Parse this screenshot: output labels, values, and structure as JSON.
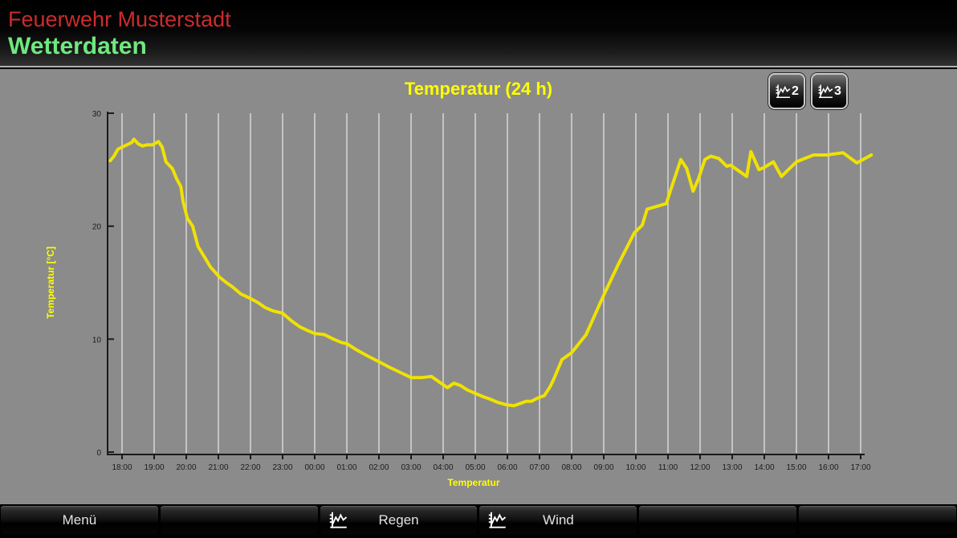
{
  "header": {
    "app_title": "Feuerwehr Musterstadt",
    "page_title": "Wetterdaten"
  },
  "view_buttons": [
    {
      "label": "2",
      "icon": "line-chart-icon"
    },
    {
      "label": "3",
      "icon": "line-chart-icon"
    }
  ],
  "chart_data": {
    "type": "line",
    "title": "Temperatur (24 h)",
    "xlabel": "Temperatur",
    "ylabel": "Temperatur [°C]",
    "ylim": [
      0,
      30
    ],
    "y_ticks": [
      30,
      20,
      10,
      0
    ],
    "x_ticks": [
      "18:00",
      "19:00",
      "20:00",
      "21:00",
      "22:00",
      "23:00",
      "00:00",
      "01:00",
      "02:00",
      "03:00",
      "04:00",
      "05:00",
      "06:00",
      "07:00",
      "08:00",
      "09:00",
      "10:00",
      "11:00",
      "12:00",
      "13:00",
      "14:00",
      "15:00",
      "16:00",
      "17:00"
    ],
    "x_unit": "minutes after 18:00",
    "grid": "vertical hourly gridlines",
    "legend_position": "none",
    "line_color": "#f0e202",
    "series": [
      {
        "name": "Temperatur",
        "points": [
          [
            -22,
            25.8
          ],
          [
            -15,
            26.2
          ],
          [
            -8,
            26.8
          ],
          [
            0,
            27.0
          ],
          [
            9,
            27.2
          ],
          [
            18,
            27.4
          ],
          [
            22,
            27.7
          ],
          [
            30,
            27.3
          ],
          [
            38,
            27.1
          ],
          [
            46,
            27.2
          ],
          [
            57,
            27.2
          ],
          [
            68,
            27.5
          ],
          [
            75,
            27.0
          ],
          [
            82,
            25.7
          ],
          [
            90,
            25.3
          ],
          [
            94,
            25.1
          ],
          [
            102,
            24.2
          ],
          [
            110,
            23.5
          ],
          [
            114,
            22.2
          ],
          [
            122,
            20.7
          ],
          [
            132,
            20.0
          ],
          [
            142,
            18.2
          ],
          [
            155,
            17.2
          ],
          [
            165,
            16.4
          ],
          [
            182,
            15.5
          ],
          [
            195,
            15.0
          ],
          [
            207,
            14.6
          ],
          [
            222,
            14.0
          ],
          [
            240,
            13.6
          ],
          [
            255,
            13.2
          ],
          [
            267,
            12.8
          ],
          [
            282,
            12.5
          ],
          [
            300,
            12.3
          ],
          [
            317,
            11.6
          ],
          [
            332,
            11.1
          ],
          [
            345,
            10.8
          ],
          [
            360,
            10.5
          ],
          [
            378,
            10.4
          ],
          [
            395,
            10.0
          ],
          [
            410,
            9.7
          ],
          [
            420,
            9.6
          ],
          [
            440,
            9.0
          ],
          [
            459,
            8.5
          ],
          [
            480,
            8.0
          ],
          [
            500,
            7.5
          ],
          [
            522,
            7.0
          ],
          [
            540,
            6.6
          ],
          [
            560,
            6.6
          ],
          [
            578,
            6.7
          ],
          [
            593,
            6.2
          ],
          [
            608,
            5.7
          ],
          [
            620,
            6.1
          ],
          [
            632,
            5.9
          ],
          [
            645,
            5.5
          ],
          [
            660,
            5.2
          ],
          [
            675,
            4.9
          ],
          [
            687,
            4.7
          ],
          [
            702,
            4.4
          ],
          [
            717,
            4.2
          ],
          [
            732,
            4.1
          ],
          [
            744,
            4.3
          ],
          [
            755,
            4.5
          ],
          [
            765,
            4.5
          ],
          [
            777,
            4.8
          ],
          [
            789,
            5.0
          ],
          [
            800,
            5.8
          ],
          [
            807,
            6.5
          ],
          [
            822,
            8.2
          ],
          [
            840,
            8.8
          ],
          [
            867,
            10.4
          ],
          [
            900,
            13.9
          ],
          [
            927,
            16.6
          ],
          [
            957,
            19.4
          ],
          [
            972,
            20.1
          ],
          [
            981,
            21.5
          ],
          [
            995,
            21.7
          ],
          [
            1017,
            22.0
          ],
          [
            1025,
            23.2
          ],
          [
            1044,
            25.9
          ],
          [
            1055,
            25.1
          ],
          [
            1067,
            23.1
          ],
          [
            1077,
            24.2
          ],
          [
            1089,
            25.9
          ],
          [
            1100,
            26.2
          ],
          [
            1115,
            26.0
          ],
          [
            1130,
            25.3
          ],
          [
            1137,
            25.4
          ],
          [
            1152,
            24.9
          ],
          [
            1167,
            24.4
          ],
          [
            1175,
            26.6
          ],
          [
            1190,
            25.0
          ],
          [
            1200,
            25.2
          ],
          [
            1217,
            25.7
          ],
          [
            1232,
            24.4
          ],
          [
            1260,
            25.7
          ],
          [
            1292,
            26.3
          ],
          [
            1317,
            26.3
          ],
          [
            1347,
            26.5
          ],
          [
            1373,
            25.6
          ],
          [
            1400,
            26.3
          ]
        ]
      }
    ]
  },
  "bottom_bar": {
    "buttons": [
      {
        "label": "Menü",
        "icon": ""
      },
      {
        "label": "",
        "icon": ""
      },
      {
        "label": "Regen",
        "icon": "line-chart-icon"
      },
      {
        "label": "Wind",
        "icon": "line-chart-icon"
      },
      {
        "label": "",
        "icon": ""
      },
      {
        "label": "",
        "icon": ""
      }
    ]
  },
  "colors": {
    "background_gray": "#8b8b8b",
    "header_background": "#000000",
    "app_title_red": "#cc2b2b",
    "page_title_green": "#6fe87f",
    "chart_line_yellow": "#f0e202",
    "chart_label_yellow": "#ffff00",
    "gridline": "#c4c4c4",
    "axis": "#1b1b1b"
  }
}
